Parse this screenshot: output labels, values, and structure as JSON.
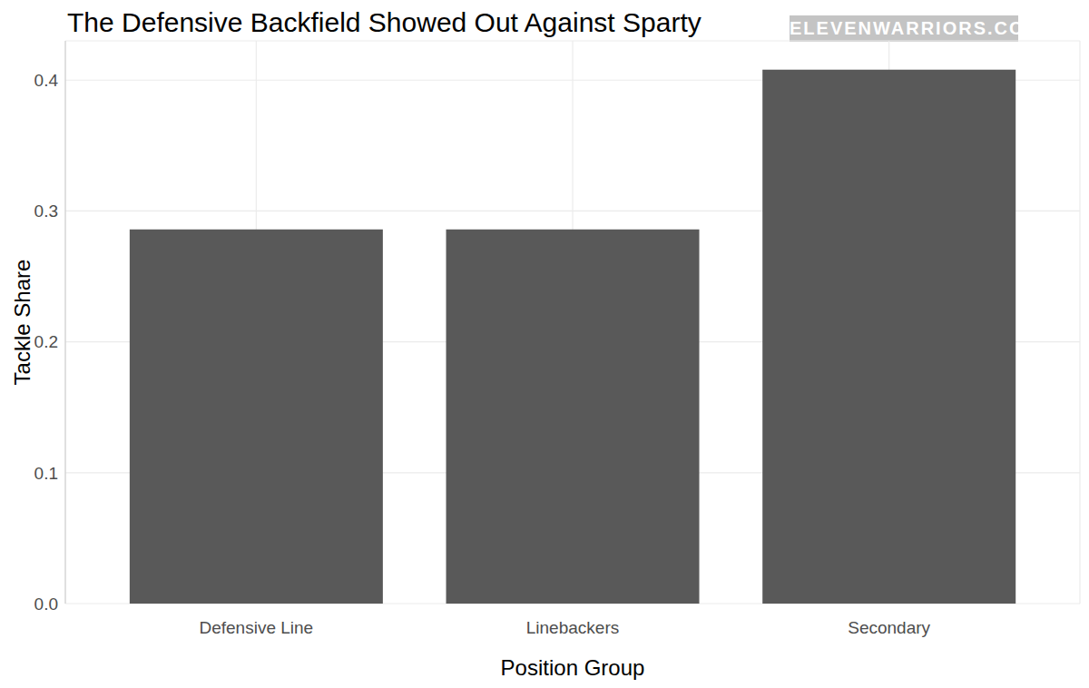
{
  "chart_data": {
    "type": "bar",
    "title": "The Defensive Backfield Showed Out Against Sparty",
    "annotations": [
      "ELEVENWARRIORS.COM"
    ],
    "x_label": "Position Group",
    "y_label": "Tackle Share",
    "categories": [
      "Defensive Line",
      "Linebackers",
      "Secondary"
    ],
    "values": [
      0.286,
      0.286,
      0.408
    ],
    "color": "#595959",
    "ylim": [
      0,
      0.43
    ],
    "yticks": [
      {
        "value": 0,
        "label": "0.0"
      },
      0.1,
      0.2,
      0.3,
      0.4
    ],
    "grid": true
  }
}
